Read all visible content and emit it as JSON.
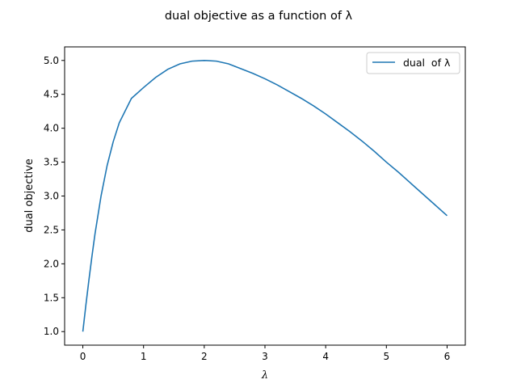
{
  "chart_data": {
    "type": "line",
    "title": "dual objective as a function of λ",
    "xlabel": "λ",
    "ylabel": "dual objective",
    "xlim": [
      -0.3,
      6.3
    ],
    "ylim": [
      0.8,
      5.2
    ],
    "xticks": [
      0,
      1,
      2,
      3,
      4,
      5,
      6
    ],
    "xtick_labels": [
      "0",
      "1",
      "2",
      "3",
      "4",
      "5",
      "6"
    ],
    "yticks": [
      1.0,
      1.5,
      2.0,
      2.5,
      3.0,
      3.5,
      4.0,
      4.5,
      5.0
    ],
    "ytick_labels": [
      "1.0",
      "1.5",
      "2.0",
      "2.5",
      "3.0",
      "3.5",
      "4.0",
      "4.5",
      "5.0"
    ],
    "grid": false,
    "legend_position": "top-right",
    "series": [
      {
        "name": "dual  of λ",
        "color": "#1f77b4",
        "x": [
          0,
          0.05,
          0.1,
          0.15,
          0.2,
          0.3,
          0.4,
          0.5,
          0.6,
          0.8,
          1.0,
          1.2,
          1.4,
          1.6,
          1.8,
          2.0,
          2.2,
          2.4,
          2.6,
          2.8,
          3.0,
          3.2,
          3.4,
          3.6,
          3.8,
          4.0,
          4.2,
          4.4,
          4.6,
          4.8,
          5.0,
          5.2,
          5.4,
          5.6,
          5.8,
          6.0
        ],
        "y": [
          1.0,
          1.39,
          1.76,
          2.11,
          2.44,
          3.0,
          3.45,
          3.8,
          4.08,
          4.44,
          4.6,
          4.75,
          4.87,
          4.95,
          4.99,
          5.0,
          4.99,
          4.95,
          4.88,
          4.81,
          4.73,
          4.64,
          4.54,
          4.44,
          4.33,
          4.21,
          4.08,
          3.95,
          3.81,
          3.66,
          3.5,
          3.35,
          3.19,
          3.03,
          2.87,
          2.71
        ]
      }
    ]
  }
}
